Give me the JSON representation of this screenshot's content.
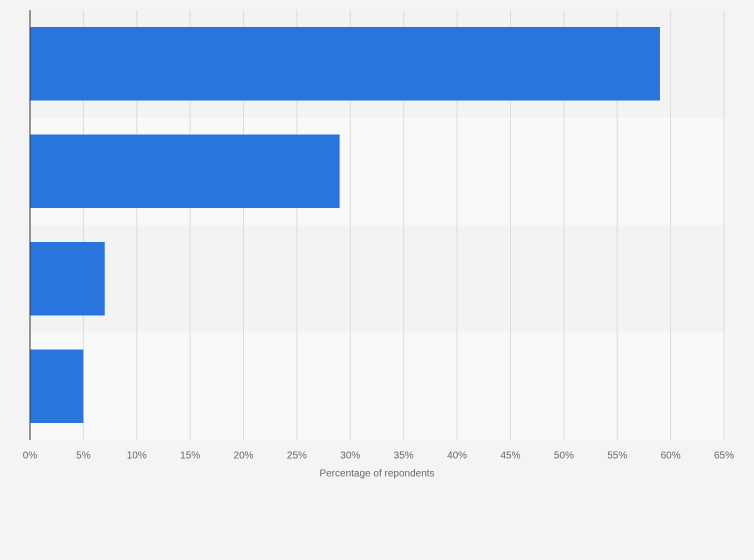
{
  "chart_data": {
    "type": "bar",
    "orientation": "horizontal",
    "categories": [
      null,
      null,
      null,
      null
    ],
    "values": [
      59,
      29,
      7,
      5
    ],
    "color": "#2876dd",
    "xlim": [
      0,
      65
    ],
    "xticks": [
      {
        "value": 0,
        "label": "0%"
      },
      {
        "value": 5,
        "label": "5%"
      },
      {
        "value": 10,
        "label": "10%"
      },
      {
        "value": 15,
        "label": "15%"
      },
      {
        "value": 20,
        "label": "20%"
      },
      {
        "value": 25,
        "label": "25%"
      },
      {
        "value": 30,
        "label": "30%"
      },
      {
        "value": 35,
        "label": "35%"
      },
      {
        "value": 40,
        "label": "40%"
      },
      {
        "value": 45,
        "label": "45%"
      },
      {
        "value": 50,
        "label": "50%"
      },
      {
        "value": 55,
        "label": "55%"
      },
      {
        "value": 60,
        "label": "60%"
      },
      {
        "value": 65,
        "label": "65%"
      }
    ],
    "x_label": "Percentage of repondents",
    "grid": true
  }
}
